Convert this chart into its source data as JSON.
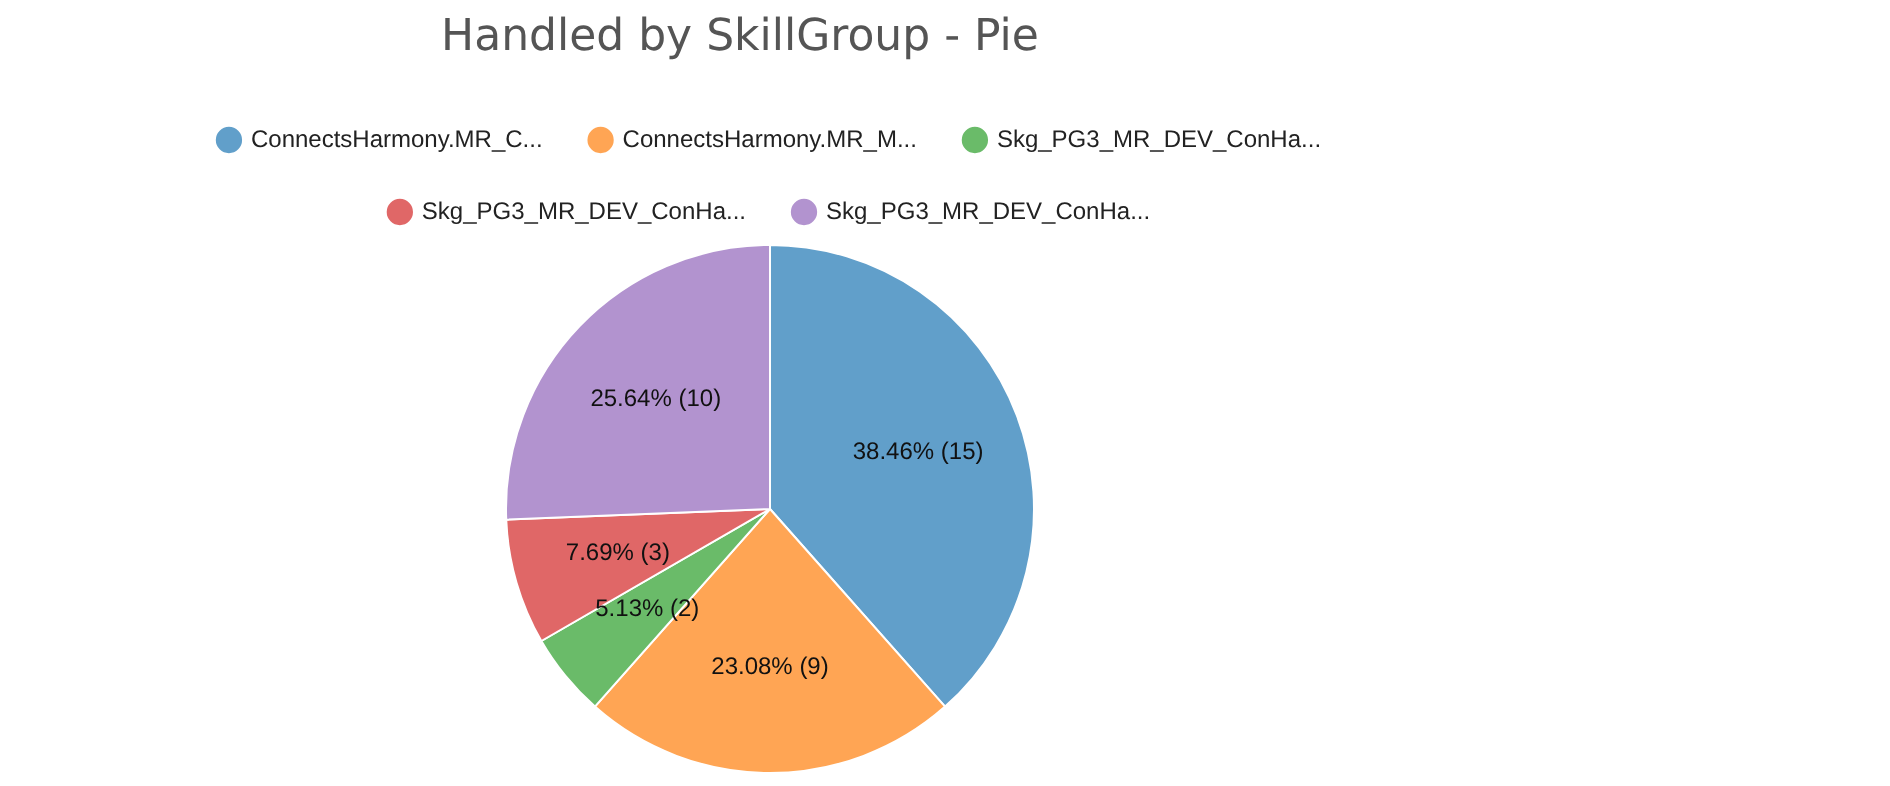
{
  "chart_data": {
    "type": "pie",
    "title": "Handled by SkillGroup - Pie",
    "categories": [
      "ConnectsHarmony.MR_C...",
      "ConnectsHarmony.MR_M...",
      "Skg_PG3_MR_DEV_ConHa...",
      "Skg_PG3_MR_DEV_ConHa...",
      "Skg_PG3_MR_DEV_ConHa..."
    ],
    "values": [
      15,
      9,
      2,
      3,
      10
    ],
    "colors": [
      "#619fca",
      "#ffa554",
      "#6abb69",
      "#e06767",
      "#b293cf"
    ],
    "value_labels": [
      "38.46% (15)",
      "23.08% (9)",
      "5.13% (2)",
      "7.69% (3)",
      "25.64% (10)"
    ],
    "legend": "top"
  }
}
